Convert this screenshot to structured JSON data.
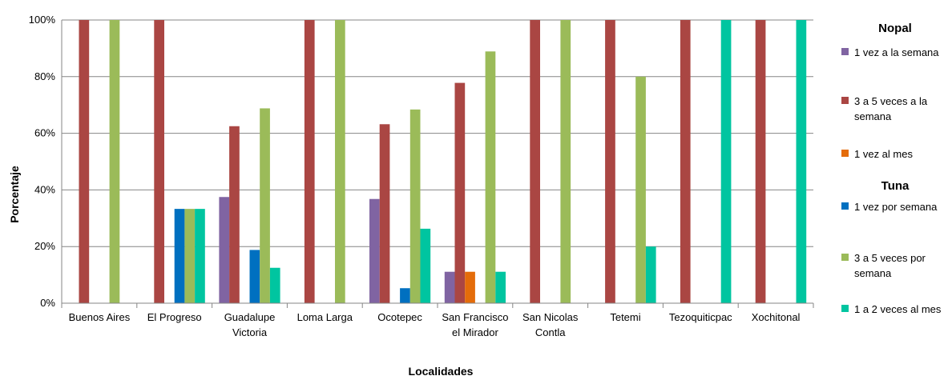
{
  "chart_data": {
    "type": "bar",
    "xlabel": "Localidades",
    "ylabel": "Porcentaje",
    "ylim": [
      0,
      100
    ],
    "y_ticks": [
      "0%",
      "20%",
      "40%",
      "60%",
      "80%",
      "100%"
    ],
    "grid": true,
    "legend_position": "right",
    "categories": [
      [
        "Buenos Aires"
      ],
      [
        "El Progreso"
      ],
      [
        "Guadalupe",
        "Victoria"
      ],
      [
        "Loma Larga"
      ],
      [
        "Ocotepec"
      ],
      [
        "San Francisco",
        "el Mirador"
      ],
      [
        "San Nicolas",
        "Contla"
      ],
      [
        "Tetemi"
      ],
      [
        "Tezoquiticpac"
      ],
      [
        "Xochitonal"
      ]
    ],
    "legend_groups": [
      {
        "title": "Nopal",
        "series": [
          {
            "name": [
              "1 vez a la semana"
            ],
            "color": "#8064A2",
            "values": [
              0,
              0,
              37.5,
              0,
              36.8,
              11.1,
              0,
              0,
              0,
              0
            ]
          },
          {
            "name": [
              "3 a 5 veces a la",
              "semana"
            ],
            "color": "#AA4643",
            "values": [
              100,
              100,
              62.5,
              100,
              63.2,
              77.8,
              100,
              100,
              100,
              100
            ]
          },
          {
            "name": [
              "1 vez al mes"
            ],
            "color": "#E46C0A",
            "values": [
              0,
              0,
              0,
              0,
              0,
              11.1,
              0,
              0,
              0,
              0
            ]
          }
        ]
      },
      {
        "title": "Tuna",
        "series": [
          {
            "name": [
              "1 vez por semana"
            ],
            "color": "#0070C0",
            "values": [
              0,
              33.3,
              18.8,
              0,
              5.3,
              0,
              0,
              0,
              0,
              0
            ]
          },
          {
            "name": [
              "3 a 5 veces por",
              "semana"
            ],
            "color": "#9BBB59",
            "values": [
              100,
              33.3,
              68.8,
              100,
              68.4,
              88.9,
              100,
              80,
              0,
              0
            ]
          },
          {
            "name": [
              "1 a 2 veces al mes"
            ],
            "color": "#00C5A0",
            "values": [
              0,
              33.3,
              12.5,
              0,
              26.3,
              11.1,
              0,
              20,
              100,
              100
            ]
          }
        ]
      }
    ]
  }
}
